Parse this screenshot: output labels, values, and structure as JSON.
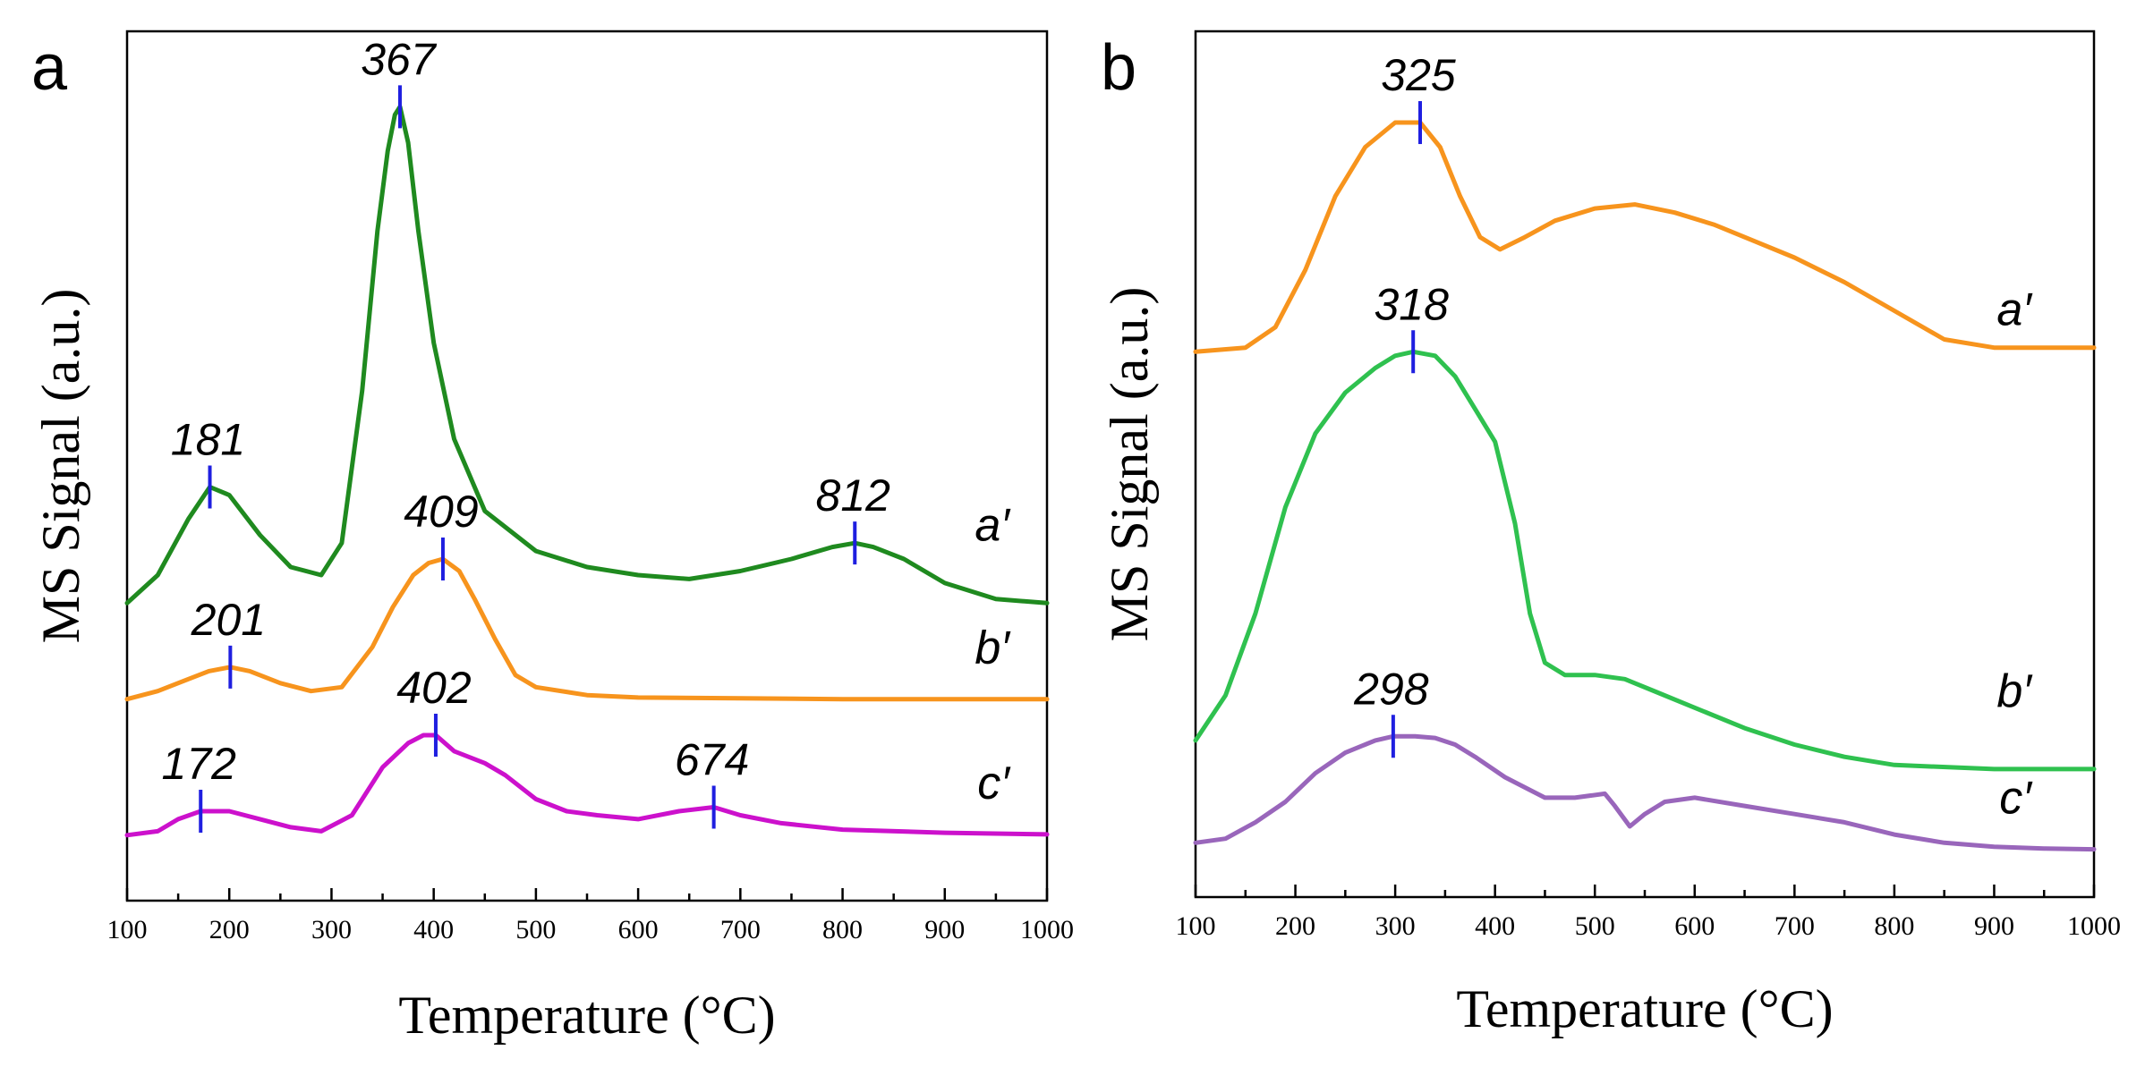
{
  "chart_data": [
    {
      "type": "line",
      "panel": "a",
      "xlabel": "Temperature (°C)",
      "ylabel": "MS Signal (a.u.)",
      "xlim": [
        100,
        1000
      ],
      "x_ticks": [
        "100",
        "200",
        "300",
        "400",
        "500",
        "600",
        "700",
        "800",
        "900",
        "1000"
      ],
      "ylim": [
        0,
        1
      ],
      "grid": false,
      "legend": "none",
      "series": [
        {
          "name": "a′",
          "color": "#1f8a1f",
          "x": [
            100,
            130,
            160,
            181,
            200,
            230,
            260,
            290,
            310,
            330,
            345,
            355,
            362,
            367,
            375,
            385,
            400,
            420,
            450,
            500,
            550,
            600,
            650,
            700,
            750,
            790,
            812,
            830,
            860,
            900,
            950,
            1000
          ],
          "y": [
            0.355,
            0.39,
            0.46,
            0.5,
            0.49,
            0.44,
            0.4,
            0.39,
            0.43,
            0.62,
            0.82,
            0.92,
            0.965,
            0.975,
            0.93,
            0.82,
            0.68,
            0.56,
            0.47,
            0.42,
            0.4,
            0.39,
            0.385,
            0.395,
            0.41,
            0.425,
            0.43,
            0.425,
            0.41,
            0.38,
            0.36,
            0.355
          ],
          "peaks": [
            {
              "label": "181",
              "x": 181,
              "y": 0.5
            },
            {
              "label": "367",
              "x": 367,
              "y": 0.975
            },
            {
              "label": "812",
              "x": 812,
              "y": 0.43
            }
          ]
        },
        {
          "name": "b′",
          "color": "#f7941d",
          "x": [
            100,
            130,
            160,
            180,
            201,
            220,
            250,
            280,
            310,
            340,
            360,
            380,
            395,
            409,
            425,
            440,
            460,
            480,
            500,
            550,
            600,
            700,
            800,
            900,
            1000
          ],
          "y": [
            0.235,
            0.245,
            0.26,
            0.27,
            0.275,
            0.27,
            0.255,
            0.245,
            0.25,
            0.3,
            0.35,
            0.39,
            0.405,
            0.41,
            0.395,
            0.36,
            0.31,
            0.265,
            0.25,
            0.24,
            0.237,
            0.236,
            0.235,
            0.235,
            0.235
          ],
          "peaks": [
            {
              "label": "201",
              "x": 201,
              "y": 0.275
            },
            {
              "label": "409",
              "x": 409,
              "y": 0.41
            }
          ]
        },
        {
          "name": "c′",
          "color": "#cc11cc",
          "x": [
            100,
            130,
            150,
            172,
            200,
            230,
            260,
            290,
            320,
            350,
            375,
            390,
            402,
            420,
            450,
            470,
            500,
            530,
            560,
            600,
            640,
            674,
            700,
            740,
            800,
            900,
            1000
          ],
          "y": [
            0.065,
            0.07,
            0.085,
            0.095,
            0.095,
            0.085,
            0.075,
            0.07,
            0.09,
            0.15,
            0.18,
            0.19,
            0.19,
            0.17,
            0.155,
            0.14,
            0.11,
            0.095,
            0.09,
            0.085,
            0.095,
            0.1,
            0.09,
            0.08,
            0.072,
            0.068,
            0.066
          ],
          "peaks": [
            {
              "label": "172",
              "x": 172,
              "y": 0.095
            },
            {
              "label": "402",
              "x": 402,
              "y": 0.19
            },
            {
              "label": "674",
              "x": 674,
              "y": 0.1
            }
          ]
        }
      ]
    },
    {
      "type": "line",
      "panel": "b",
      "xlabel": "Temperature (°C)",
      "ylabel": "MS Signal (a.u.)",
      "xlim": [
        100,
        1000
      ],
      "x_ticks": [
        "100",
        "200",
        "300",
        "400",
        "500",
        "600",
        "700",
        "800",
        "900",
        "1000"
      ],
      "ylim": [
        0,
        1
      ],
      "grid": false,
      "legend": "none",
      "series": [
        {
          "name": "a′",
          "color": "#f7941d",
          "x": [
            100,
            150,
            180,
            210,
            240,
            270,
            300,
            325,
            345,
            365,
            385,
            405,
            430,
            460,
            500,
            540,
            580,
            620,
            660,
            700,
            750,
            800,
            850,
            900,
            950,
            1000
          ],
          "y": [
            0.65,
            0.655,
            0.68,
            0.75,
            0.84,
            0.9,
            0.93,
            0.93,
            0.9,
            0.84,
            0.79,
            0.775,
            0.79,
            0.81,
            0.825,
            0.83,
            0.82,
            0.805,
            0.785,
            0.765,
            0.735,
            0.7,
            0.665,
            0.655,
            0.655,
            0.655
          ],
          "peaks": [
            {
              "label": "325",
              "x": 325,
              "y": 0.93
            }
          ]
        },
        {
          "name": "b′",
          "color": "#2fc14f",
          "x": [
            100,
            130,
            160,
            190,
            220,
            250,
            280,
            300,
            318,
            340,
            360,
            380,
            400,
            420,
            435,
            450,
            470,
            500,
            530,
            560,
            600,
            650,
            700,
            750,
            800,
            900,
            1000
          ],
          "y": [
            0.175,
            0.23,
            0.33,
            0.46,
            0.55,
            0.6,
            0.63,
            0.645,
            0.65,
            0.645,
            0.62,
            0.58,
            0.54,
            0.44,
            0.33,
            0.27,
            0.255,
            0.255,
            0.25,
            0.235,
            0.215,
            0.19,
            0.17,
            0.155,
            0.145,
            0.14,
            0.14
          ],
          "peaks": [
            {
              "label": "318",
              "x": 318,
              "y": 0.65
            }
          ]
        },
        {
          "name": "c′",
          "color": "#9966bb",
          "x": [
            100,
            130,
            160,
            190,
            220,
            250,
            280,
            298,
            320,
            340,
            360,
            380,
            410,
            450,
            480,
            510,
            520,
            535,
            550,
            570,
            600,
            650,
            700,
            750,
            800,
            850,
            900,
            950,
            1000
          ],
          "y": [
            0.05,
            0.055,
            0.075,
            0.1,
            0.135,
            0.16,
            0.175,
            0.18,
            0.18,
            0.178,
            0.17,
            0.155,
            0.13,
            0.105,
            0.105,
            0.11,
            0.095,
            0.07,
            0.085,
            0.1,
            0.105,
            0.095,
            0.085,
            0.075,
            0.06,
            0.05,
            0.045,
            0.043,
            0.042
          ],
          "peaks": [
            {
              "label": "298",
              "x": 298,
              "y": 0.18
            }
          ]
        }
      ]
    }
  ],
  "figure": {
    "panel_a_letter": "a",
    "panel_b_letter": "b"
  }
}
